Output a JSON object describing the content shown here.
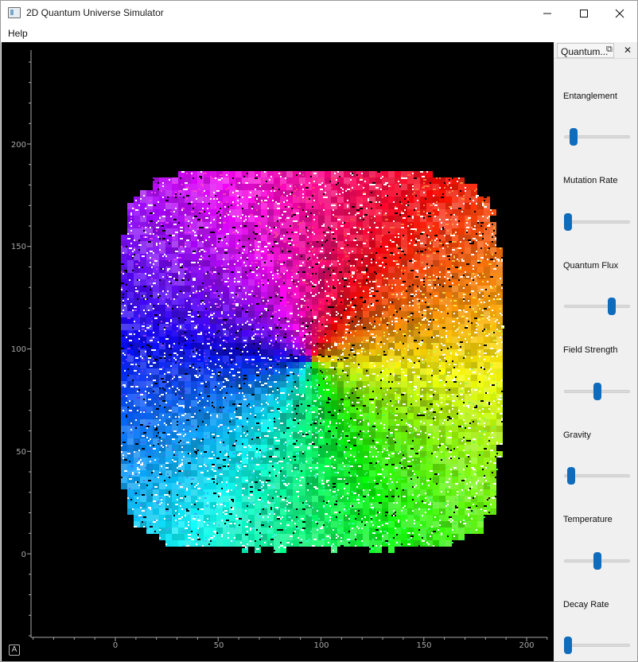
{
  "window": {
    "title": "2D Quantum Universe Simulator",
    "minimize_icon": "minimize-icon",
    "maximize_icon": "maximize-icon",
    "close_icon": "close-icon"
  },
  "menu": {
    "items": [
      "Help"
    ]
  },
  "plot": {
    "background": "#000000",
    "x_ticks": [
      "0",
      "50",
      "100",
      "150",
      "200"
    ],
    "y_ticks": [
      "200",
      "150",
      "100",
      "50",
      "0"
    ],
    "auto_button_label": "A",
    "colormap": "hue by angle around center (rainbow), noisy pixelated field"
  },
  "dock": {
    "title": "Quantum...",
    "float_icon": "float-icon",
    "close_icon": "close-icon",
    "sliders": [
      {
        "label": "Entanglement",
        "level": 0.1
      },
      {
        "label": "Mutation Rate",
        "level": 0.0
      },
      {
        "label": "Quantum Flux",
        "level": 0.75
      },
      {
        "label": "Field Strength",
        "level": 0.5
      },
      {
        "label": "Gravity",
        "level": 0.05
      },
      {
        "label": "Temperature",
        "level": 0.5
      },
      {
        "label": "Decay Rate",
        "level": 0.0
      }
    ]
  },
  "colors": {
    "slider_accent": "#0f6cbd",
    "axis": "#a8a8a8"
  }
}
